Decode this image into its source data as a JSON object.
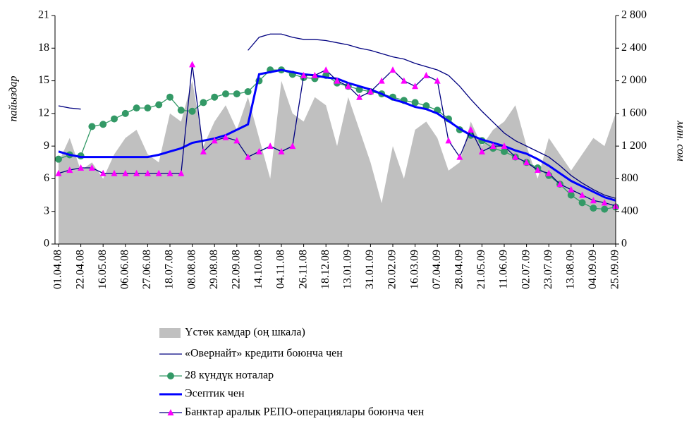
{
  "chart_data": {
    "type": "line",
    "ylabel": "пайыздар",
    "y2label": "млн. сом",
    "categories": [
      "01.04.08",
      null,
      "22.04.08",
      null,
      "16.05.08",
      null,
      "06.06.08",
      null,
      "27.06.08",
      null,
      "18.07.08",
      null,
      "08.08.08",
      null,
      "29.08.08",
      null,
      "22.09.08",
      null,
      "14.10.08",
      null,
      "04.11.08",
      null,
      "26.11.08",
      null,
      "18.12.08",
      null,
      "13.01.09",
      null,
      "31.01.09",
      null,
      "20.02.09",
      null,
      "16.03.09",
      null,
      "07.04.09",
      null,
      "28.04.09",
      null,
      "21.05.09",
      null,
      "11.06.09",
      null,
      "02.07.09",
      null,
      "23.07.09",
      null,
      "13.08.09",
      null,
      "04.09.09",
      null,
      "25.09.09"
    ],
    "ylim": [
      0,
      21
    ],
    "yticks": [
      0,
      3,
      6,
      9,
      12,
      15,
      18,
      21
    ],
    "y2lim": [
      0,
      2800
    ],
    "y2ticks": [
      0,
      400,
      800,
      {
        "value": 1200,
        "label": "1 200"
      },
      {
        "value": 1600,
        "label": "1 600"
      },
      {
        "value": 2000,
        "label": "2 000"
      },
      {
        "value": 2400,
        "label": "2 400"
      },
      {
        "value": 2800,
        "label": "2 800"
      }
    ],
    "series": [
      {
        "name": "Үстөк камдар (оң шкала)",
        "type": "area",
        "axis": "y2",
        "color": "#c0c0c0",
        "values": [
          1000,
          1300,
          900,
          1000,
          800,
          1100,
          1300,
          1400,
          1100,
          1000,
          1600,
          1500,
          2000,
          1200,
          1500,
          1700,
          1400,
          1800,
          1300,
          800,
          2000,
          1600,
          1500,
          1800,
          1700,
          1200,
          1800,
          1400,
          1000,
          500,
          1200,
          800,
          1400,
          1500,
          1300,
          900,
          1000,
          1500,
          1200,
          1400,
          1500,
          1700,
          1200,
          800,
          1300,
          1100,
          900,
          1100,
          1300,
          1200,
          1600
        ]
      },
      {
        "name": "«Овернайт» кредити боюнча чен",
        "type": "line",
        "color": "#000080",
        "width": 1.3,
        "values": [
          12.7,
          12.5,
          12.4,
          null,
          null,
          null,
          null,
          null,
          null,
          null,
          null,
          null,
          null,
          null,
          null,
          null,
          null,
          17.8,
          19.0,
          19.3,
          19.3,
          19.0,
          18.8,
          18.8,
          18.7,
          18.5,
          18.3,
          18.0,
          17.8,
          17.5,
          17.2,
          17.0,
          16.6,
          16.3,
          16.0,
          15.5,
          14.5,
          13.3,
          12.2,
          11.2,
          10.2,
          9.5,
          9.0,
          8.5,
          8.0,
          7.2,
          6.3,
          5.6,
          5.0,
          4.5,
          4.2
        ]
      },
      {
        "name": "28 күндүк ноталар",
        "type": "line",
        "color": "#339966",
        "width": 1.3,
        "marker": "circle",
        "marker_color": "#339966",
        "values": [
          7.8,
          8.2,
          8.1,
          10.8,
          11.0,
          11.5,
          12.0,
          12.5,
          12.5,
          12.8,
          13.5,
          12.3,
          12.2,
          13.0,
          13.5,
          13.8,
          13.8,
          14.0,
          15.0,
          16.0,
          16.0,
          15.6,
          15.3,
          15.2,
          15.5,
          14.8,
          14.5,
          14.2,
          14.0,
          13.8,
          13.5,
          13.2,
          13.0,
          12.7,
          12.3,
          11.5,
          10.5,
          10.0,
          9.5,
          8.8,
          8.5,
          8.0,
          7.5,
          7.0,
          6.3,
          5.5,
          4.5,
          3.8,
          3.3,
          3.2,
          3.4
        ]
      },
      {
        "name": "Эсептик чен",
        "type": "line",
        "color": "#0000ff",
        "width": 3,
        "values": [
          8.5,
          8.2,
          8.0,
          8.0,
          8.0,
          8.0,
          8.0,
          8.0,
          8.0,
          8.2,
          8.5,
          8.8,
          9.3,
          9.5,
          9.7,
          10.0,
          10.5,
          11.0,
          15.6,
          15.8,
          16.0,
          15.8,
          15.6,
          15.5,
          15.3,
          15.2,
          14.8,
          14.5,
          14.2,
          13.8,
          13.3,
          13.0,
          12.6,
          12.4,
          12.0,
          11.3,
          10.6,
          10.0,
          9.6,
          9.3,
          9.0,
          8.6,
          8.3,
          7.8,
          7.2,
          6.5,
          5.8,
          5.3,
          4.8,
          4.3,
          4.0
        ]
      },
      {
        "name": "Банктар аралык РЕПО-операциялары боюнча чен",
        "type": "line",
        "color": "#000080",
        "width": 1.3,
        "marker": "triangle",
        "marker_color": "#ff00ff",
        "values": [
          6.5,
          6.8,
          7.0,
          7.0,
          6.5,
          6.5,
          6.5,
          6.5,
          6.5,
          6.5,
          6.5,
          6.5,
          16.5,
          8.5,
          9.5,
          9.8,
          9.5,
          8.0,
          8.5,
          9.0,
          8.5,
          9.0,
          15.5,
          15.5,
          16.0,
          15.0,
          14.5,
          13.5,
          14.0,
          15.0,
          16.0,
          15.0,
          14.5,
          15.5,
          15.0,
          9.5,
          8.0,
          10.5,
          8.5,
          9.0,
          9.0,
          8.0,
          7.5,
          6.8,
          6.5,
          5.5,
          5.0,
          4.5,
          4.0,
          3.8,
          3.5
        ]
      }
    ]
  }
}
